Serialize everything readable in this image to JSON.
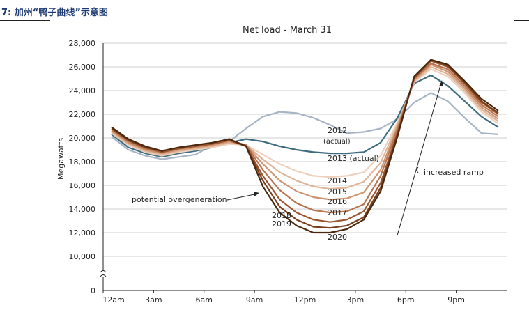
{
  "figure": {
    "label": "7: 加州“鸭子曲线”示意图"
  },
  "chart_data": {
    "type": "line",
    "title": "Net load - March 31",
    "ylabel": "Megawatts",
    "xlabel": "",
    "ylim": [
      0,
      28000
    ],
    "y_ticks": [
      0,
      10000,
      12000,
      14000,
      16000,
      18000,
      20000,
      22000,
      24000,
      26000,
      28000
    ],
    "y_tick_labels": [
      "0",
      "10,000",
      "12,000",
      "14,000",
      "16,000",
      "18,000",
      "20,000",
      "22,000",
      "24,000",
      "26,000",
      "28,000"
    ],
    "y_axis_break": true,
    "x": [
      0,
      1,
      2,
      3,
      4,
      5,
      6,
      7,
      8,
      9,
      10,
      11,
      12,
      13,
      14,
      15,
      16,
      17,
      18,
      19,
      20,
      21,
      22,
      23
    ],
    "x_tick_hours": [
      0,
      3,
      6,
      9,
      12,
      15,
      18,
      21
    ],
    "x_tick_labels": [
      "12am",
      "3am",
      "6am",
      "9am",
      "12pm",
      "3pm",
      "6pm",
      "9pm"
    ],
    "grid": true,
    "series": [
      {
        "name": "2012 (actual)",
        "color": "#a7b4c5",
        "values": [
          20100,
          19000,
          18500,
          18200,
          18400,
          18600,
          19400,
          19700,
          20800,
          21800,
          22200,
          22100,
          21700,
          21100,
          20400,
          20500,
          20800,
          21600,
          23000,
          23800,
          23100,
          21700,
          20400,
          20300
        ]
      },
      {
        "name": "2013 (actual)",
        "color": "#3e6c80",
        "values": [
          20300,
          19200,
          18700,
          18400,
          18700,
          18900,
          19200,
          19600,
          19900,
          19700,
          19300,
          19000,
          18800,
          18700,
          18700,
          18800,
          19600,
          21700,
          24600,
          25300,
          24400,
          23100,
          21800,
          20900
        ]
      },
      {
        "name": "2014",
        "color": "#edd1bc",
        "values": [
          20400,
          19400,
          18800,
          18500,
          18800,
          19000,
          19200,
          19500,
          19400,
          18600,
          17800,
          17200,
          16800,
          16700,
          16800,
          17100,
          18500,
          21300,
          24700,
          25800,
          25200,
          23800,
          22200,
          21200
        ]
      },
      {
        "name": "2015",
        "color": "#e0b496",
        "values": [
          20500,
          19500,
          18900,
          18600,
          18900,
          19100,
          19300,
          19600,
          19400,
          18200,
          17100,
          16400,
          15900,
          15700,
          15800,
          16300,
          17900,
          21100,
          24800,
          26000,
          25400,
          24000,
          22400,
          21400
        ]
      },
      {
        "name": "2016",
        "color": "#cf9472",
        "values": [
          20600,
          19600,
          19000,
          18700,
          19000,
          19200,
          19400,
          19700,
          19400,
          17800,
          16400,
          15500,
          15000,
          14800,
          14900,
          15400,
          17300,
          20900,
          24900,
          26200,
          25600,
          24200,
          22600,
          21600
        ]
      },
      {
        "name": "2017",
        "color": "#b87650",
        "values": [
          20700,
          19700,
          19100,
          18800,
          19100,
          19300,
          19500,
          19800,
          19400,
          17300,
          15600,
          14500,
          13900,
          13700,
          13800,
          14400,
          16800,
          20700,
          25000,
          26300,
          25800,
          24400,
          22800,
          21800
        ]
      },
      {
        "name": "2018",
        "color": "#9a5630",
        "values": [
          20800,
          19800,
          19200,
          18800,
          19100,
          19300,
          19500,
          19800,
          19300,
          16800,
          14800,
          13700,
          13100,
          12900,
          13100,
          13800,
          16200,
          20400,
          25100,
          26500,
          26000,
          24600,
          23000,
          22000
        ]
      },
      {
        "name": "2019",
        "color": "#7a3f1c",
        "values": [
          20800,
          19800,
          19200,
          18900,
          19200,
          19400,
          19600,
          19900,
          19300,
          16400,
          14200,
          13100,
          12500,
          12400,
          12600,
          13300,
          15800,
          20300,
          25100,
          26600,
          26100,
          24700,
          23100,
          22100
        ]
      },
      {
        "name": "2020",
        "color": "#4a2810",
        "values": [
          20900,
          19900,
          19300,
          18900,
          19200,
          19400,
          19600,
          19900,
          19300,
          15900,
          13700,
          12600,
          12000,
          12000,
          12300,
          13100,
          15500,
          20100,
          25200,
          26600,
          26200,
          24800,
          23300,
          22300
        ]
      }
    ],
    "annotations": {
      "label_2012": "2012",
      "label_2012_sub": "(actual)",
      "label_2013": "2013 (actual)",
      "label_2014": "2014",
      "label_2015": "2015",
      "label_2016": "2016",
      "label_2017": "2017",
      "label_2018": "2018",
      "label_2019": "2019",
      "label_2020": "2020",
      "overgeneration": "potential overgeneration",
      "increased_ramp": "increased ramp"
    }
  }
}
